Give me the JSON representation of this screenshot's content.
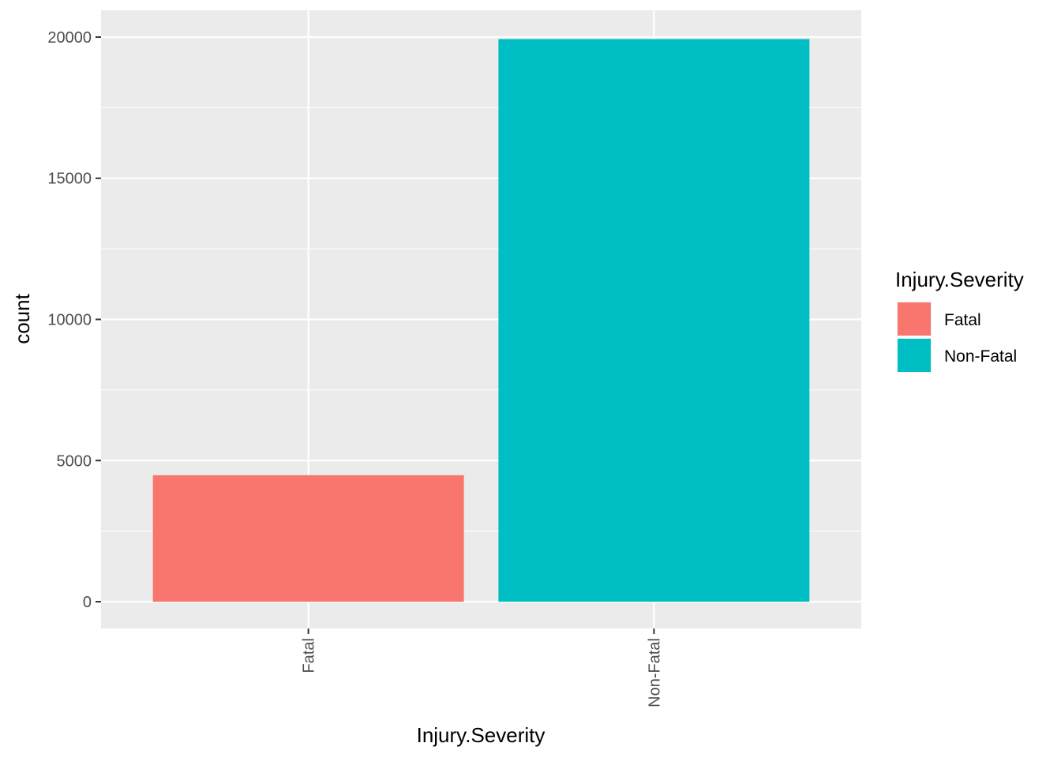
{
  "chart_data": {
    "type": "bar",
    "xlabel": "Injury.Severity",
    "ylabel": "count",
    "categories": [
      "Fatal",
      "Non-Fatal"
    ],
    "values": [
      4480,
      19930
    ],
    "colors": [
      "#F8766D",
      "#00BFC4"
    ],
    "yticks": [
      0,
      5000,
      10000,
      15000,
      20000
    ],
    "ylim": [
      -950,
      20950
    ],
    "grid": true,
    "x_tick_rotation": "vertical",
    "legend": {
      "title": "Injury.Severity",
      "placement": "right",
      "entries": [
        "Fatal",
        "Non-Fatal"
      ]
    }
  }
}
